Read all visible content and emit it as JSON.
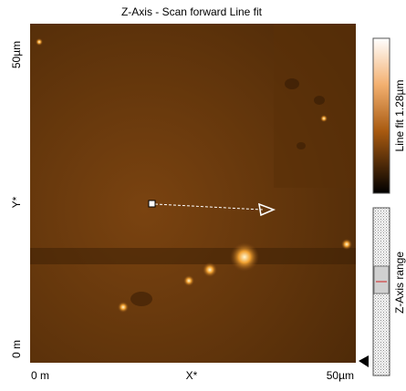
{
  "title": "Z-Axis - Scan forward   Line fit",
  "y_axis": {
    "top": "50µm",
    "label": "Y*",
    "bottom": "0 m"
  },
  "x_axis": {
    "left": "0 m",
    "label": "X*",
    "right": "50µm"
  },
  "colorbar": {
    "label": "Line fit 1.28µm"
  },
  "range_control": {
    "label": "Z-Axis range"
  }
}
